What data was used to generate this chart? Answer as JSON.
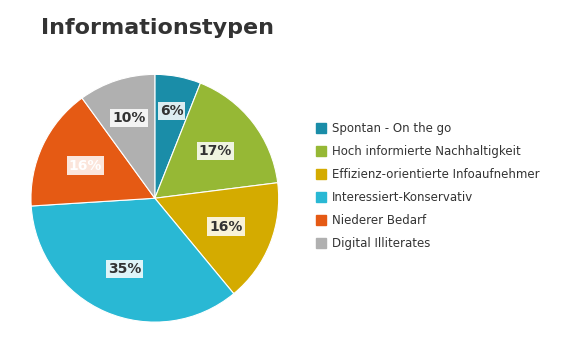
{
  "title": "Informationstypen",
  "title_fontsize": 16,
  "title_fontweight": "bold",
  "slices": [
    6,
    17,
    16,
    35,
    16,
    10
  ],
  "labels": [
    "Spontan - On the go",
    "Hoch informierte Nachhaltigkeit",
    "Effizienz-orientierte Infoaufnehmer",
    "Interessiert-Konservativ",
    "Niederer Bedarf",
    "Digital Illiterates"
  ],
  "colors": [
    "#1a8da8",
    "#96b835",
    "#d4ab00",
    "#29b8d4",
    "#e55a14",
    "#b0b0b0"
  ],
  "pct_labels": [
    "6%",
    "17%",
    "16%",
    "35%",
    "16%",
    "10%"
  ],
  "pct_text_colors": [
    "#333333",
    "#333333",
    "#333333",
    "#333333",
    "#ffffff",
    "#333333"
  ],
  "startangle": 90,
  "legend_fontsize": 8.5,
  "pct_fontsize": 10,
  "background_color": "#ffffff"
}
